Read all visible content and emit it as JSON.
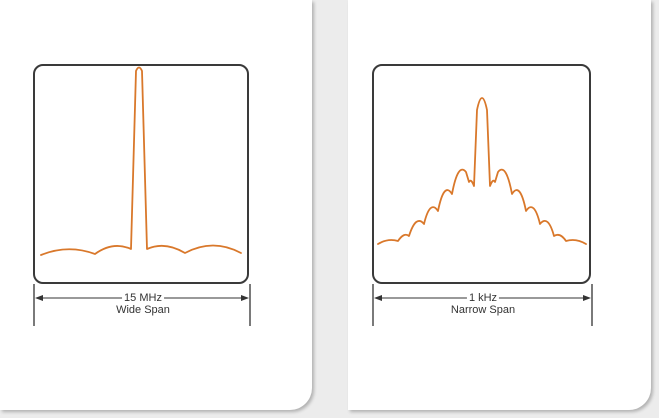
{
  "colors": {
    "trace": "#d9782b",
    "frame": "#3a3a3a",
    "dimension": "#333333",
    "background": "#ececec",
    "card": "#ffffff"
  },
  "panels": [
    {
      "id": "wide",
      "span_value": "15 MHz",
      "span_label": "Wide Span",
      "signal": "single tall peak with low flat sidelobes"
    },
    {
      "id": "narrow",
      "span_value": "1 kHz",
      "span_label": "Narrow Span",
      "signal": "central peak with descending lobes on both sides"
    }
  ]
}
